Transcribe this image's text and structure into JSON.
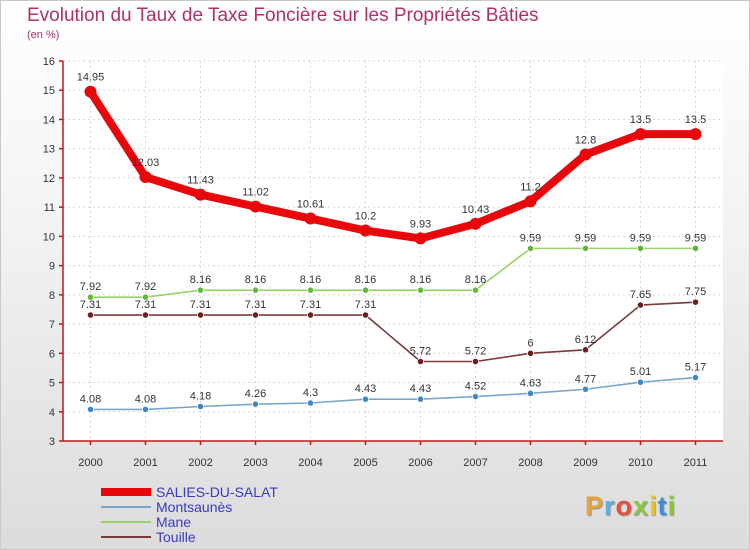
{
  "title": "Evolution du Taux de Taxe Foncière sur les Propriétés Bâties",
  "subtitle": "(en %)",
  "logo": {
    "text": "Proxiti",
    "colors": [
      "#e8a23a",
      "#5ab0e0",
      "#e94e3c",
      "#8cc63f",
      "#f0c419",
      "#3a8fd6",
      "#8cc63f"
    ]
  },
  "chart_data": {
    "type": "line",
    "title": "Evolution du Taux de Taxe Foncière sur les Propriétés Bâties",
    "ylabel": "(en %)",
    "ylim": [
      3,
      16
    ],
    "yticks": [
      "3",
      "4",
      "5",
      "6",
      "7",
      "8",
      "9",
      "10",
      "11",
      "12",
      "13",
      "14",
      "15",
      "16"
    ],
    "categories": [
      "2000",
      "2001",
      "2002",
      "2003",
      "2004",
      "2005",
      "2006",
      "2007",
      "2008",
      "2009",
      "2010",
      "2011"
    ],
    "series": [
      {
        "name": "SALIES-DU-SALAT",
        "color": "#e8070a",
        "highlight": true,
        "values": [
          14.95,
          12.03,
          11.43,
          11.02,
          10.61,
          10.2,
          9.93,
          10.43,
          11.2,
          12.8,
          13.5,
          13.5
        ],
        "labels": [
          "14.95",
          "12.03",
          "11.43",
          "11.02",
          "10.61",
          "10.2",
          "9.93",
          "10.43",
          "11.2",
          "12.8",
          "13.5",
          "13.5"
        ]
      },
      {
        "name": "Montsaunès",
        "color": "#7aa6c9",
        "marker": "#3f88c4",
        "highlight": false,
        "values": [
          4.08,
          4.08,
          4.18,
          4.26,
          4.3,
          4.43,
          4.43,
          4.52,
          4.63,
          4.77,
          5.01,
          5.17
        ],
        "labels": [
          "4.08",
          "4.08",
          "4.18",
          "4.26",
          "4.3",
          "4.43",
          "4.43",
          "4.52",
          "4.63",
          "4.77",
          "5.01",
          "5.17"
        ]
      },
      {
        "name": "Mane",
        "color": "#98d26a",
        "marker": "#62b83a",
        "highlight": false,
        "values": [
          7.92,
          7.92,
          8.16,
          8.16,
          8.16,
          8.16,
          8.16,
          8.16,
          9.59,
          9.59,
          9.59,
          9.59
        ],
        "labels": [
          "7.92",
          "7.92",
          "8.16",
          "8.16",
          "8.16",
          "8.16",
          "8.16",
          "8.16",
          "9.59",
          "9.59",
          "9.59",
          "9.59"
        ]
      },
      {
        "name": "Touille",
        "color": "#7a3a3a",
        "marker": "#6b1f1f",
        "highlight": false,
        "values": [
          7.31,
          7.31,
          7.31,
          7.31,
          7.31,
          7.31,
          5.72,
          5.72,
          6.0,
          6.12,
          7.65,
          7.75
        ],
        "labels": [
          "7.31",
          "7.31",
          "7.31",
          "7.31",
          "7.31",
          "7.31",
          "5.72",
          "5.72",
          "6",
          "6.12",
          "7.65",
          "7.75"
        ]
      }
    ]
  }
}
